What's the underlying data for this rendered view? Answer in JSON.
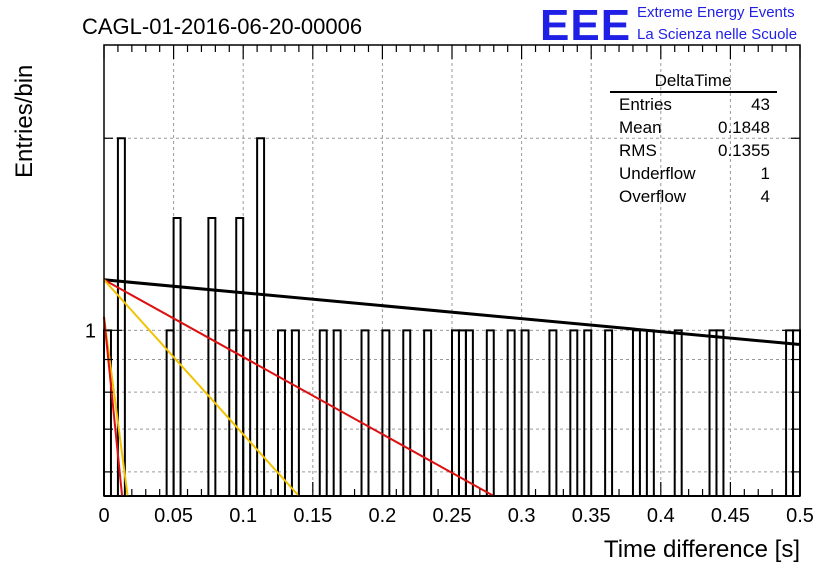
{
  "title": "CAGL-01-2016-06-20-00006",
  "logo": {
    "mark": "EEE",
    "line1": "Extreme Energy Events",
    "line2": "La Scienza nelle Scuole",
    "color": "#1f1fe6"
  },
  "stats": {
    "title": "DeltaTime",
    "rows": [
      {
        "label": "Entries",
        "value": "43"
      },
      {
        "label": "Mean",
        "value": "0.1848"
      },
      {
        "label": "RMS",
        "value": "0.1355"
      },
      {
        "label": "Underflow",
        "value": "1"
      },
      {
        "label": "Overflow",
        "value": "4"
      }
    ]
  },
  "chart_data": {
    "type": "histogram",
    "xlabel": "Time difference [s]",
    "ylabel": "Entries/bin",
    "xlim": [
      0,
      0.5
    ],
    "yscale": "log",
    "ylim": [
      0.55,
      2.8
    ],
    "grid": true,
    "xticks": [
      "0",
      "0.05",
      "0.1",
      "0.15",
      "0.2",
      "0.25",
      "0.3",
      "0.35",
      "0.4",
      "0.45",
      "0.5"
    ],
    "yticks": [
      "1"
    ],
    "bin_width": 0.005,
    "bins": [
      {
        "x": 0.0,
        "value": 1
      },
      {
        "x": 0.01,
        "value": 2
      },
      {
        "x": 0.045,
        "value": 1
      },
      {
        "x": 0.05,
        "value": 1.5
      },
      {
        "x": 0.075,
        "value": 1.5
      },
      {
        "x": 0.09,
        "value": 1
      },
      {
        "x": 0.095,
        "value": 1.5
      },
      {
        "x": 0.1,
        "value": 1
      },
      {
        "x": 0.11,
        "value": 2
      },
      {
        "x": 0.125,
        "value": 1
      },
      {
        "x": 0.135,
        "value": 1
      },
      {
        "x": 0.155,
        "value": 1
      },
      {
        "x": 0.165,
        "value": 1
      },
      {
        "x": 0.185,
        "value": 1
      },
      {
        "x": 0.2,
        "value": 1
      },
      {
        "x": 0.215,
        "value": 1
      },
      {
        "x": 0.23,
        "value": 1
      },
      {
        "x": 0.25,
        "value": 1
      },
      {
        "x": 0.255,
        "value": 1
      },
      {
        "x": 0.26,
        "value": 1
      },
      {
        "x": 0.275,
        "value": 1
      },
      {
        "x": 0.29,
        "value": 1
      },
      {
        "x": 0.3,
        "value": 1
      },
      {
        "x": 0.32,
        "value": 1
      },
      {
        "x": 0.335,
        "value": 1
      },
      {
        "x": 0.345,
        "value": 1
      },
      {
        "x": 0.36,
        "value": 1
      },
      {
        "x": 0.38,
        "value": 1
      },
      {
        "x": 0.39,
        "value": 1
      },
      {
        "x": 0.41,
        "value": 1
      },
      {
        "x": 0.435,
        "value": 1
      },
      {
        "x": 0.44,
        "value": 1
      },
      {
        "x": 0.49,
        "value": 1
      },
      {
        "x": 0.495,
        "value": 1
      }
    ],
    "fits": [
      {
        "color": "#000000",
        "points": [
          [
            0,
            1.2
          ],
          [
            0.5,
            0.95
          ]
        ]
      },
      {
        "color": "#dd1111",
        "points": [
          [
            0,
            1.2
          ],
          [
            0.28,
            0.55
          ]
        ]
      },
      {
        "color": "#f2c200",
        "points": [
          [
            0,
            1.2
          ],
          [
            0.14,
            0.55
          ]
        ]
      },
      {
        "color": "#f2c200",
        "points": [
          [
            0,
            1.05
          ],
          [
            0.017,
            0.55
          ]
        ]
      },
      {
        "color": "#dd1111",
        "points": [
          [
            0,
            1.05
          ],
          [
            0.013,
            0.55
          ]
        ]
      }
    ]
  }
}
